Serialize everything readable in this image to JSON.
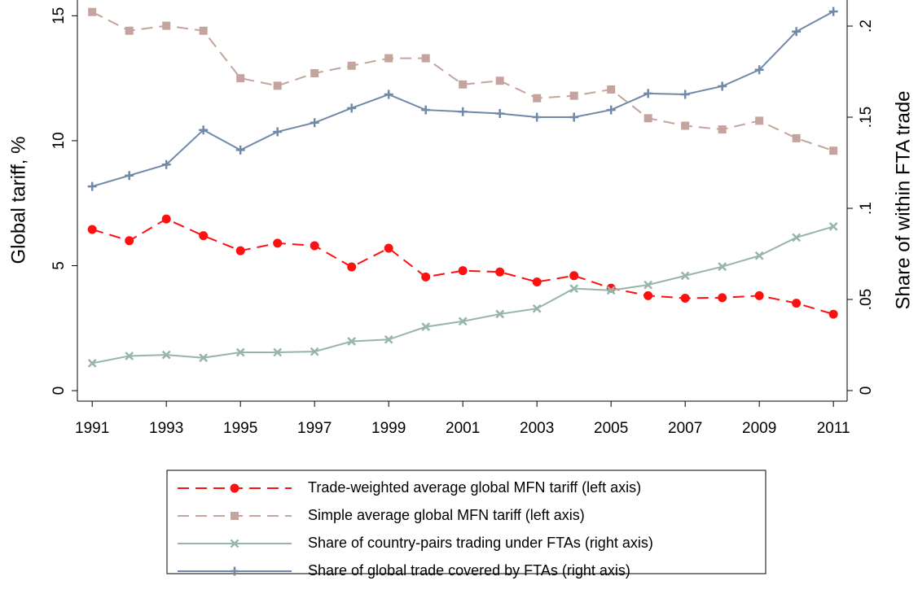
{
  "chart_data": {
    "type": "line",
    "x": [
      1991,
      1992,
      1993,
      1994,
      1995,
      1996,
      1997,
      1998,
      1999,
      2000,
      2001,
      2002,
      2003,
      2004,
      2005,
      2006,
      2007,
      2008,
      2009,
      2010,
      2011
    ],
    "xlim": [
      1990.6,
      2011.37
    ],
    "xticks": [
      1991,
      1993,
      1995,
      1997,
      1999,
      2001,
      2003,
      2005,
      2007,
      2009,
      2011
    ],
    "ylabel": "Global tariff, %",
    "ylim": [
      -0.42,
      15.63
    ],
    "yticks": [
      0,
      5,
      10,
      15
    ],
    "y2label": "Share of within FTA trade",
    "y2lim": [
      -0.0058,
      0.2143
    ],
    "y2ticks": [
      0,
      {
        "value": 0.05,
        "label": ".05"
      },
      {
        "value": 0.1,
        "label": ".1"
      },
      {
        "value": 0.15,
        "label": ".15"
      },
      {
        "value": 0.2,
        "label": ".2"
      }
    ],
    "legend": "bottom",
    "series": [
      {
        "name": "Trade-weighted average global MFN tariff (left axis)",
        "color": "#ff1010",
        "marker": "circle",
        "dashed": true,
        "values": [
          6.45,
          6.0,
          6.87,
          6.2,
          5.6,
          5.9,
          5.8,
          4.95,
          5.7,
          4.55,
          4.8,
          4.75,
          4.35,
          4.6,
          4.1,
          3.8,
          3.7,
          3.72,
          3.8,
          3.5,
          3.06
        ]
      },
      {
        "name": "Simple average global MFN tariff (left axis)",
        "color": "#c4a49c",
        "marker": "square",
        "dashed": true,
        "values": [
          15.15,
          14.4,
          14.6,
          14.4,
          12.5,
          12.2,
          12.7,
          13.0,
          13.3,
          13.3,
          12.25,
          12.4,
          11.7,
          11.8,
          12.05,
          10.9,
          10.6,
          10.45,
          10.8,
          10.1,
          9.6
        ]
      },
      {
        "name": "Share of country-pairs trading under FTAs (right axis)",
        "color": "#97b5a8",
        "marker": "x",
        "dashed": false,
        "axis": "y2",
        "values": [
          0.015,
          0.019,
          0.0196,
          0.018,
          0.021,
          0.021,
          0.0214,
          0.027,
          0.028,
          0.035,
          0.038,
          0.042,
          0.045,
          0.056,
          0.055,
          0.058,
          0.063,
          0.068,
          0.074,
          0.084,
          0.09
        ]
      },
      {
        "name": "Share of global trade covered by FTAs (right axis)",
        "color": "#7089a8",
        "marker": "plus",
        "dashed": false,
        "axis": "y2",
        "values": [
          0.112,
          0.118,
          0.124,
          0.143,
          0.132,
          0.142,
          0.147,
          0.155,
          0.1625,
          0.154,
          0.153,
          0.152,
          0.15,
          0.15,
          0.154,
          0.163,
          0.1625,
          0.167,
          0.176,
          0.197,
          0.208
        ]
      }
    ]
  }
}
